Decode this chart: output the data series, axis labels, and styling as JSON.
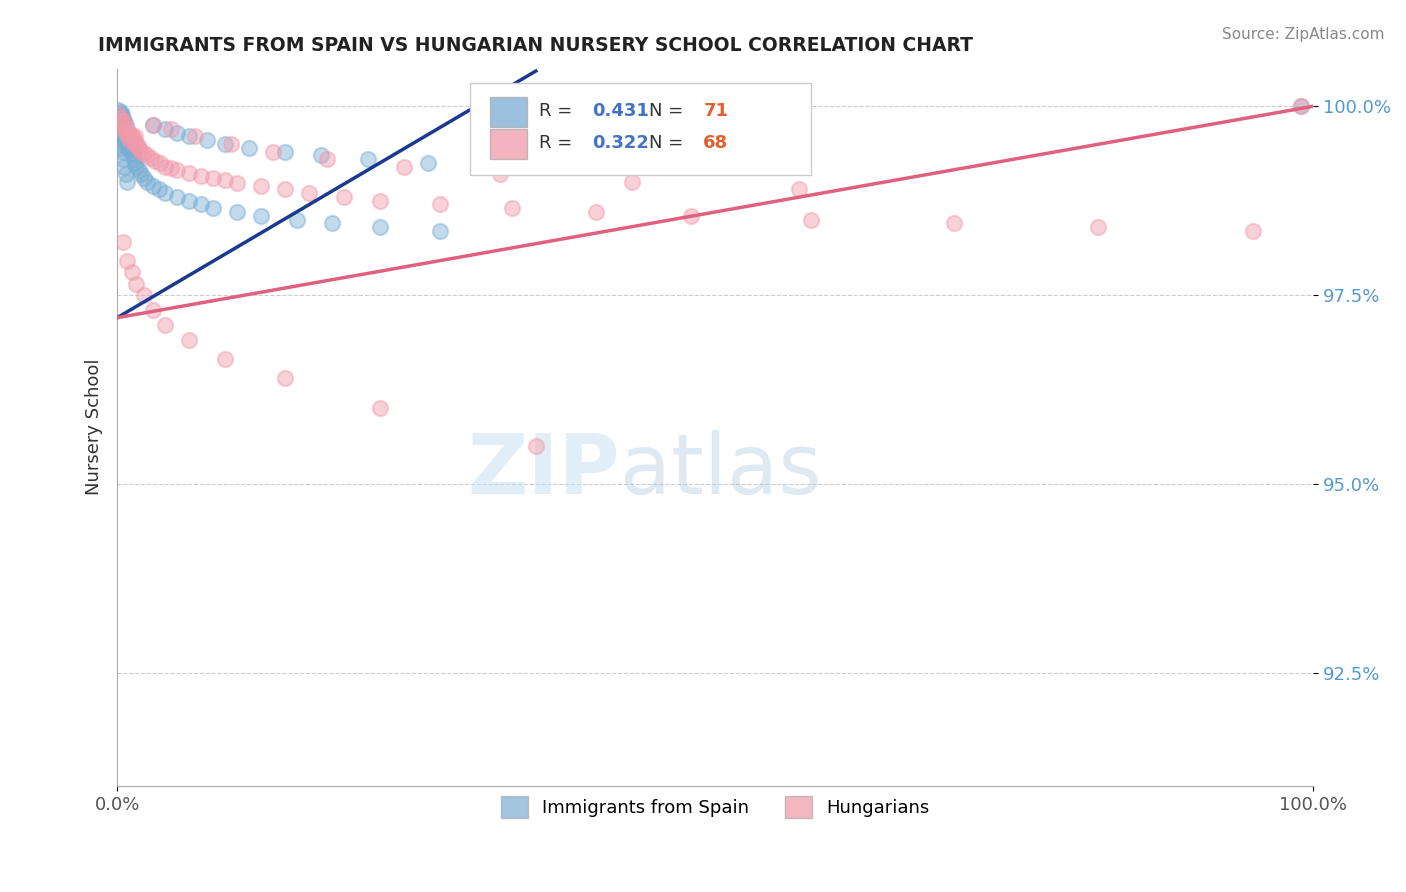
{
  "title": "IMMIGRANTS FROM SPAIN VS HUNGARIAN NURSERY SCHOOL CORRELATION CHART",
  "source": "Source: ZipAtlas.com",
  "ylabel": "Nursery School",
  "legend_blue_label": "Immigrants from Spain",
  "legend_pink_label": "Hungarians",
  "R_blue": 0.431,
  "N_blue": 71,
  "R_pink": 0.322,
  "N_pink": 68,
  "blue_color": "#7aadd4",
  "pink_color": "#f09aaa",
  "blue_line_color": "#1a3a8f",
  "pink_line_color": "#e06080",
  "scatter_alpha": 0.45,
  "scatter_size": 120,
  "blue_scatter_x": [
    0.001,
    0.001,
    0.001,
    0.002,
    0.002,
    0.002,
    0.002,
    0.003,
    0.003,
    0.003,
    0.003,
    0.003,
    0.004,
    0.004,
    0.004,
    0.004,
    0.005,
    0.005,
    0.005,
    0.005,
    0.005,
    0.006,
    0.006,
    0.006,
    0.006,
    0.007,
    0.007,
    0.007,
    0.008,
    0.008,
    0.008,
    0.009,
    0.009,
    0.01,
    0.01,
    0.011,
    0.012,
    0.013,
    0.014,
    0.015,
    0.016,
    0.018,
    0.02,
    0.022,
    0.025,
    0.03,
    0.035,
    0.04,
    0.05,
    0.06,
    0.07,
    0.08,
    0.1,
    0.12,
    0.15,
    0.18,
    0.22,
    0.27,
    0.03,
    0.04,
    0.05,
    0.06,
    0.075,
    0.09,
    0.11,
    0.14,
    0.17,
    0.21,
    0.26,
    0.32,
    0.99
  ],
  "blue_scatter_y": [
    0.998,
    0.9995,
    0.9965,
    0.9985,
    0.9975,
    0.999,
    0.996,
    0.997,
    0.9982,
    0.9993,
    0.9955,
    0.9945,
    0.9968,
    0.9978,
    0.9988,
    0.995,
    0.9972,
    0.9984,
    0.994,
    0.9962,
    0.993,
    0.9969,
    0.9979,
    0.992,
    0.9958,
    0.9965,
    0.9975,
    0.991,
    0.9952,
    0.9963,
    0.99,
    0.9948,
    0.9958,
    0.9945,
    0.9955,
    0.9942,
    0.9938,
    0.9935,
    0.993,
    0.9925,
    0.992,
    0.9915,
    0.991,
    0.9905,
    0.99,
    0.9895,
    0.989,
    0.9885,
    0.988,
    0.9875,
    0.987,
    0.9865,
    0.986,
    0.9855,
    0.985,
    0.9845,
    0.984,
    0.9835,
    0.9975,
    0.997,
    0.9965,
    0.996,
    0.9955,
    0.995,
    0.9945,
    0.994,
    0.9935,
    0.993,
    0.9925,
    0.992,
    1.0
  ],
  "pink_scatter_x": [
    0.001,
    0.002,
    0.003,
    0.004,
    0.005,
    0.006,
    0.007,
    0.008,
    0.009,
    0.01,
    0.011,
    0.012,
    0.013,
    0.014,
    0.015,
    0.016,
    0.017,
    0.018,
    0.02,
    0.022,
    0.025,
    0.028,
    0.032,
    0.036,
    0.04,
    0.045,
    0.05,
    0.06,
    0.07,
    0.08,
    0.09,
    0.1,
    0.12,
    0.14,
    0.16,
    0.19,
    0.22,
    0.27,
    0.33,
    0.4,
    0.48,
    0.58,
    0.7,
    0.82,
    0.95,
    0.99,
    0.005,
    0.008,
    0.012,
    0.016,
    0.022,
    0.03,
    0.04,
    0.06,
    0.09,
    0.14,
    0.22,
    0.35,
    0.03,
    0.045,
    0.065,
    0.095,
    0.13,
    0.175,
    0.24,
    0.32,
    0.43,
    0.57
  ],
  "pink_scatter_y": [
    0.999,
    0.9985,
    0.998,
    0.9975,
    0.997,
    0.998,
    0.9965,
    0.997,
    0.996,
    0.9965,
    0.9955,
    0.996,
    0.9958,
    0.995,
    0.996,
    0.9952,
    0.9948,
    0.9945,
    0.994,
    0.9938,
    0.9935,
    0.9932,
    0.9928,
    0.9925,
    0.992,
    0.9918,
    0.9915,
    0.9912,
    0.9908,
    0.9905,
    0.9902,
    0.9898,
    0.9895,
    0.989,
    0.9885,
    0.988,
    0.9875,
    0.987,
    0.9865,
    0.986,
    0.9855,
    0.985,
    0.9845,
    0.984,
    0.9835,
    1.0,
    0.982,
    0.9795,
    0.978,
    0.9765,
    0.975,
    0.973,
    0.971,
    0.969,
    0.9665,
    0.964,
    0.96,
    0.955,
    0.9975,
    0.997,
    0.996,
    0.995,
    0.994,
    0.993,
    0.992,
    0.991,
    0.99,
    0.989
  ],
  "blue_trend_x": [
    0.0,
    0.3
  ],
  "blue_trend_y": [
    0.972,
    1.0
  ],
  "pink_trend_x": [
    0.0,
    1.0
  ],
  "pink_trend_y": [
    0.972,
    1.0
  ],
  "watermark_zip": "ZIP",
  "watermark_atlas": "atlas",
  "xmin": 0.0,
  "xmax": 1.0,
  "ymin": 0.91,
  "ymax": 1.005,
  "ytick_values": [
    0.925,
    0.95,
    0.975,
    1.0
  ],
  "ytick_labels": [
    "92.5%",
    "95.0%",
    "97.5%",
    "100.0%"
  ]
}
